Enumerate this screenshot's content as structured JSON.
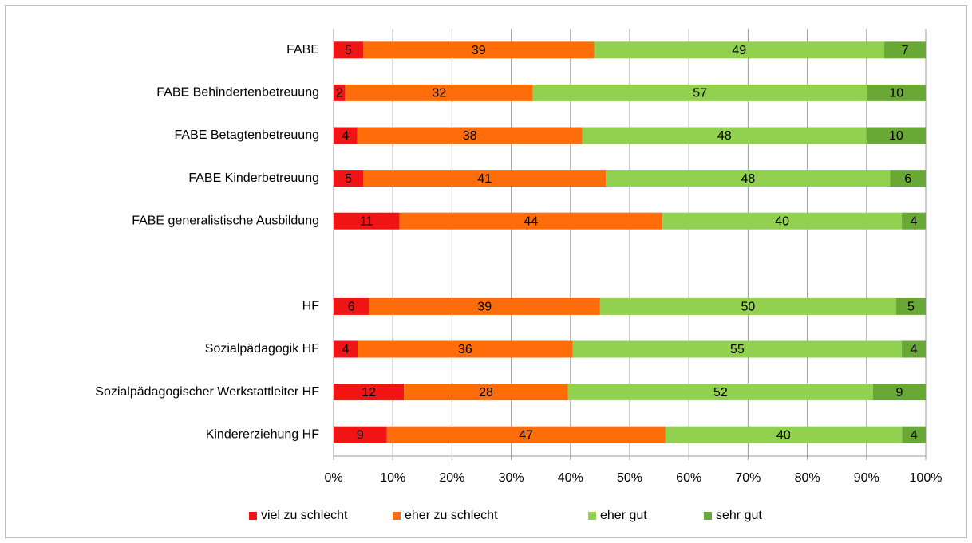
{
  "chart_data": {
    "type": "bar",
    "orientation": "horizontal",
    "stack": "percent",
    "categories": [
      "FABE",
      "FABE Behindertenbetreuung",
      "FABE Betagtenbetreuung",
      "FABE Kinderbetreuung",
      "FABE generalistische Ausbildung",
      null,
      "HF",
      "Sozialpädagogik HF",
      "Sozialpädagogischer Werkstattleiter HF",
      "Kindererziehung HF"
    ],
    "series": [
      {
        "name": "viel zu schlecht",
        "color": "#f01414",
        "values": [
          5,
          2,
          4,
          5,
          11,
          null,
          6,
          4,
          12,
          9
        ]
      },
      {
        "name": "eher zu schlecht",
        "color": "#ff6d0a",
        "values": [
          39,
          32,
          38,
          41,
          44,
          null,
          39,
          36,
          28,
          47
        ]
      },
      {
        "name": "eher gut",
        "color": "#92d050",
        "values": [
          49,
          57,
          48,
          48,
          40,
          null,
          50,
          55,
          52,
          40
        ]
      },
      {
        "name": "sehr gut",
        "color": "#6aa836",
        "values": [
          7,
          10,
          10,
          6,
          4,
          null,
          5,
          4,
          9,
          4
        ]
      }
    ],
    "xlim": [
      0,
      100
    ],
    "xticks": [
      {
        "value": 0,
        "label": "0%"
      },
      {
        "value": 10,
        "label": "10%"
      },
      {
        "value": 20,
        "label": "20%"
      },
      {
        "value": 30,
        "label": "30%"
      },
      {
        "value": 40,
        "label": "40%"
      },
      {
        "value": 50,
        "label": "50%"
      },
      {
        "value": 60,
        "label": "60%"
      },
      {
        "value": 70,
        "label": "70%"
      },
      {
        "value": 80,
        "label": "80%"
      },
      {
        "value": 90,
        "label": "90%"
      },
      {
        "value": 100,
        "label": "100%"
      }
    ],
    "grid": true,
    "legend": "bottom"
  }
}
